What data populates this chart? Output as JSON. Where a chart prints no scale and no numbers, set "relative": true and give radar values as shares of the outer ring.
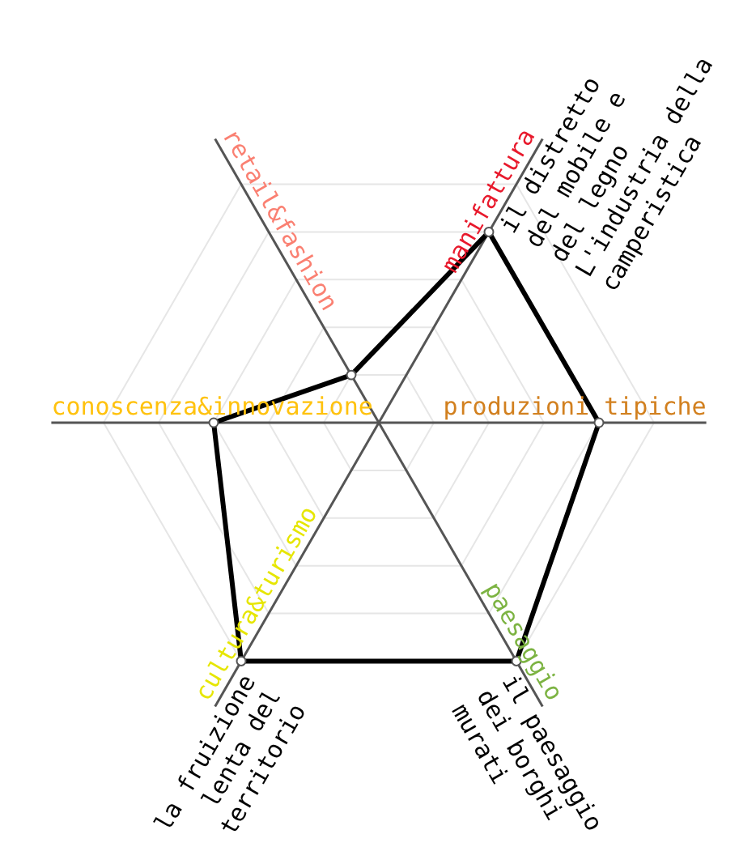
{
  "chart_data": {
    "type": "radar",
    "relative": true,
    "grid": true,
    "marker": "circle",
    "categories": [
      "manifattura",
      "produzioni tipiche",
      "paesaggio",
      "cultura&turismo",
      "conoscenza&innovazione",
      "retail&fashion"
    ],
    "colors": [
      "#e8192c",
      "#d2801f",
      "#7cb342",
      "#e6e600",
      "#ffc20e",
      "#fa8072"
    ],
    "series": [
      {
        "color": "#000000",
        "values": [
          0.8,
          0.8,
          1,
          1,
          0.6,
          0.2
        ]
      }
    ],
    "annotations": [
      {
        "text": "il distretto\ndel mobile e\ndel legno\nL'industria della\ncamperistica",
        "x": "manifattura"
      },
      {
        "text": "la fruizione\nlenta del\nterritorio",
        "x": "cultura&turismo"
      },
      {
        "text": "il paesaggio\ndei borghi\nmurati",
        "x": "paesaggio"
      }
    ]
  }
}
